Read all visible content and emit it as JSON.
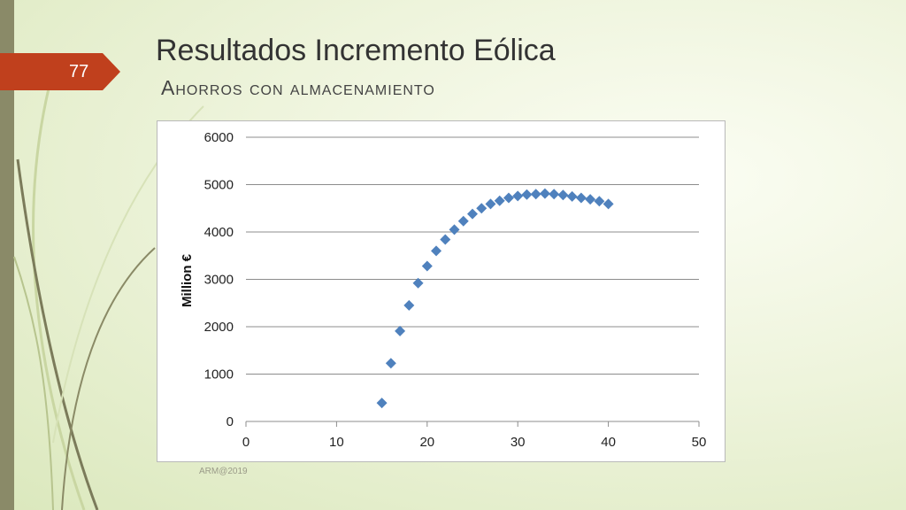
{
  "slide": {
    "number": "77",
    "title": "Resultados Incremento Eólica",
    "subtitle": "Ahorros con almacenamiento",
    "footer": "ARM@2019",
    "accent_color": "#c0401d",
    "marker_color": "#4f81bd"
  },
  "chart_data": {
    "type": "scatter",
    "title": "",
    "xlabel": "",
    "ylabel": "Million €",
    "xlim": [
      0,
      50
    ],
    "ylim": [
      0,
      6000
    ],
    "xticks": [
      0,
      10,
      20,
      30,
      40,
      50
    ],
    "yticks": [
      0,
      1000,
      2000,
      3000,
      4000,
      5000,
      6000
    ],
    "grid": "horizontal",
    "marker": "diamond",
    "series": [
      {
        "x": [
          15,
          16,
          17,
          18,
          19,
          20,
          21,
          22,
          23,
          24,
          25,
          26,
          27,
          28,
          29,
          30,
          31,
          32,
          33,
          34,
          35,
          36,
          37,
          38,
          39,
          40
        ],
        "y": [
          390,
          1230,
          1910,
          2450,
          2920,
          3280,
          3600,
          3840,
          4050,
          4230,
          4380,
          4500,
          4590,
          4660,
          4720,
          4760,
          4790,
          4800,
          4810,
          4800,
          4780,
          4750,
          4720,
          4690,
          4650,
          4590
        ]
      }
    ]
  }
}
